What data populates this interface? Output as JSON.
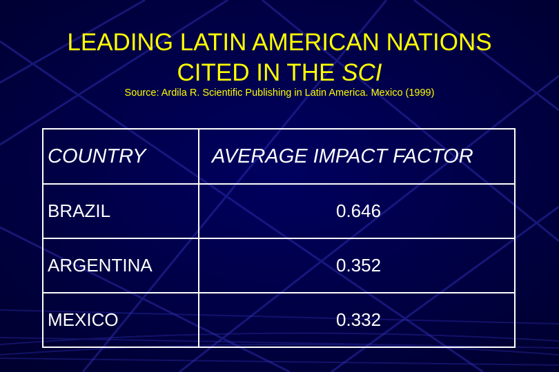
{
  "slide": {
    "title_line1": "LEADING LATIN AMERICAN NATIONS",
    "title_line2_prefix": "CITED IN THE",
    "title_line2_emph": "SCI",
    "source": "Source: Ardila R. Scientific Publishing in Latin America. Mexico (1999)",
    "colors": {
      "background": "#000040",
      "title": "#ffff00",
      "table_text": "#ffffff",
      "decoration": "#2a2aa6"
    }
  },
  "table": {
    "headers": [
      "COUNTRY",
      "AVERAGE IMPACT FACTOR"
    ],
    "rows": [
      {
        "country": "BRAZIL",
        "value": "0.646"
      },
      {
        "country": "ARGENTINA",
        "value": "0.352"
      },
      {
        "country": "MEXICO",
        "value": "0.332"
      }
    ]
  }
}
